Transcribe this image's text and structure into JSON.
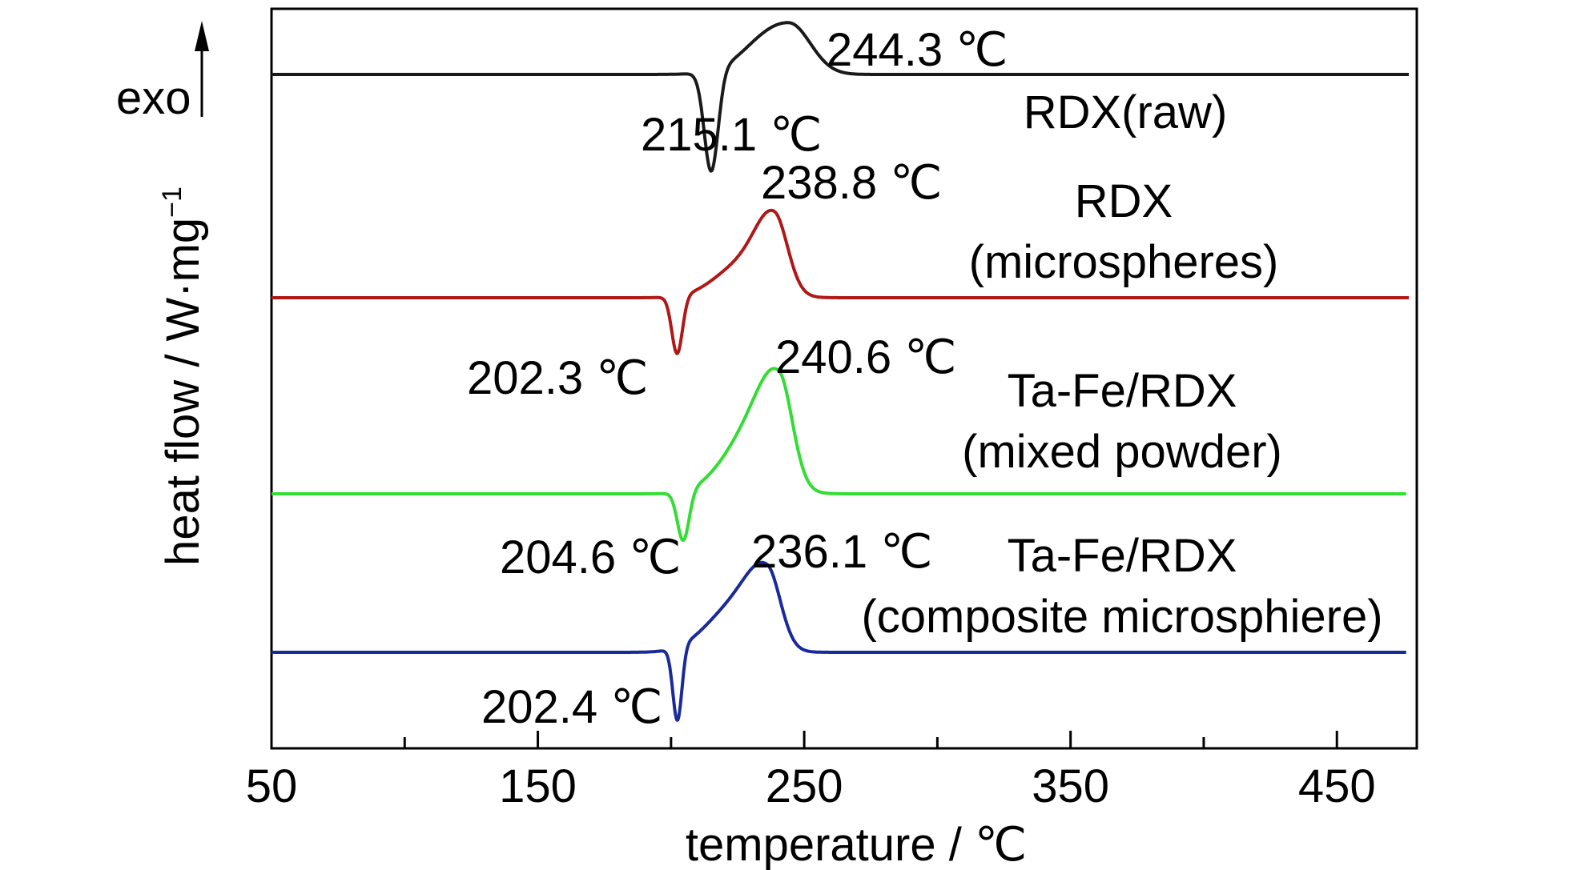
{
  "chart_data": {
    "type": "line",
    "xlabel": "temperature / ℃",
    "ylabel": "heat flow / W·mg",
    "ylabel_sup": "−1",
    "exo_label": "exo",
    "xlim": [
      50,
      480
    ],
    "xticks_major": [
      50,
      150,
      250,
      350,
      450
    ],
    "xticks_minor": [
      100,
      200,
      300,
      400
    ],
    "grid": false,
    "series": [
      {
        "name": "RDX(raw)",
        "name_lines": [
          "RDX(raw)"
        ],
        "color": "#1a1a1a",
        "baseline": 0,
        "endo_peak": {
          "x": 215.1,
          "label": "215.1 ℃"
        },
        "exo_peak": {
          "x": 244.3,
          "label": "244.3 ℃"
        }
      },
      {
        "name": "RDX (microspheres)",
        "name_lines": [
          "RDX",
          "(microspheres)"
        ],
        "color": "#b01818",
        "baseline": 0,
        "endo_peak": {
          "x": 202.3,
          "label": "202.3 ℃"
        },
        "exo_peak": {
          "x": 238.8,
          "label": "238.8 ℃"
        }
      },
      {
        "name": "Ta-Fe/RDX (mixed powder)",
        "name_lines": [
          "Ta-Fe/RDX",
          "(mixed powder)"
        ],
        "color": "#33dd33",
        "baseline": 0,
        "endo_peak": {
          "x": 204.6,
          "label": "204.6 ℃"
        },
        "exo_peak": {
          "x": 240.6,
          "label": "240.6 ℃"
        }
      },
      {
        "name": "Ta-Fe/RDX (composite microsphiere)",
        "name_lines": [
          "Ta-Fe/RDX",
          "(composite microsphiere)"
        ],
        "color": "#1a2a9a",
        "baseline": 0,
        "endo_peak": {
          "x": 202.4,
          "label": "202.4 ℃"
        },
        "exo_peak": {
          "x": 236.1,
          "label": "236.1 ℃"
        }
      }
    ]
  }
}
